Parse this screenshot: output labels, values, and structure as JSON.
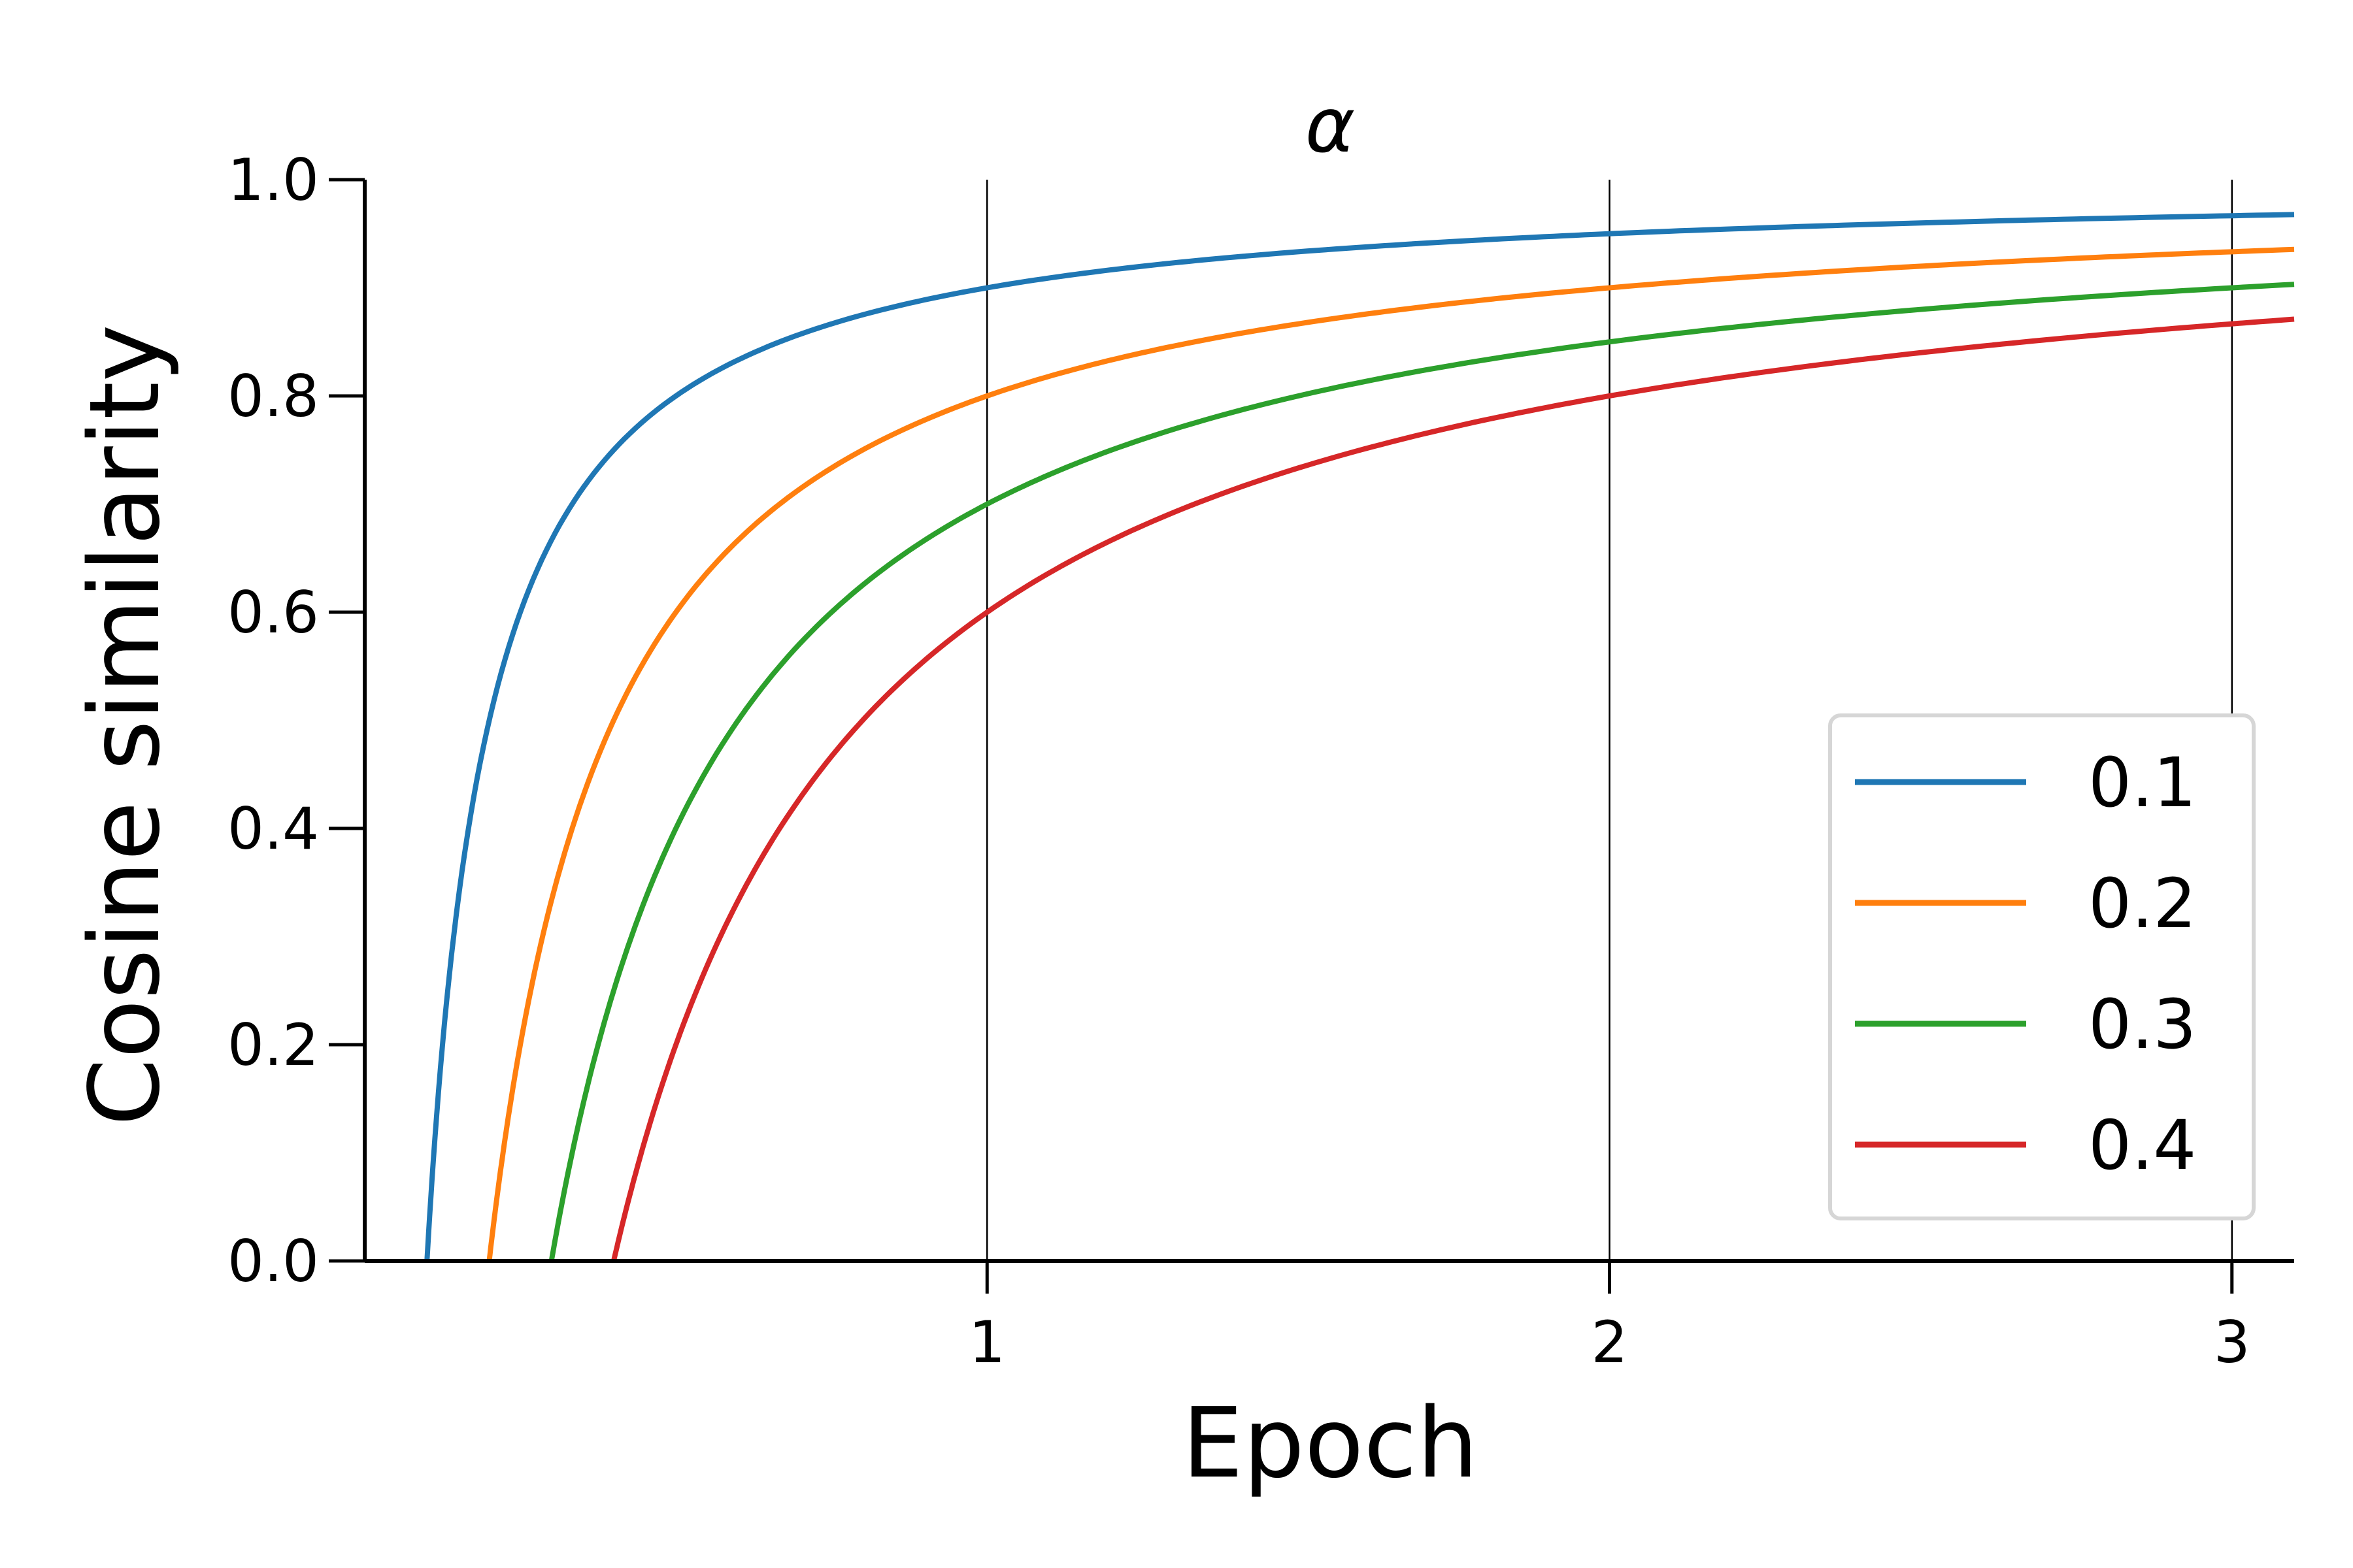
{
  "chart_data": {
    "type": "line",
    "title": "α",
    "xlabel": "Epoch",
    "ylabel": "Cosine similarity",
    "xlim": [
      0,
      3.1
    ],
    "ylim": [
      0,
      1.0
    ],
    "x_ticks": [
      "1",
      "2",
      "3"
    ],
    "y_ticks": [
      "0.0",
      "0.2",
      "0.4",
      "0.6",
      "0.8",
      "1.0"
    ],
    "grid": "vertical lines at x = 1, 2, 3",
    "legend_position": "lower-right",
    "series": [
      {
        "name": "0.1",
        "color": "#1f77b4",
        "x": [
          0.1,
          0.15,
          0.2,
          0.3,
          0.4,
          0.5,
          0.75,
          1.0,
          1.5,
          2.0,
          2.5,
          3.1
        ],
        "y": [
          0.0,
          0.333,
          0.5,
          0.667,
          0.75,
          0.8,
          0.867,
          0.9,
          0.933,
          0.95,
          0.96,
          0.968
        ]
      },
      {
        "name": "0.2",
        "color": "#ff7f0e",
        "x": [
          0.2,
          0.25,
          0.3,
          0.4,
          0.5,
          0.75,
          1.0,
          1.5,
          2.0,
          2.5,
          3.1
        ],
        "y": [
          0.0,
          0.2,
          0.333,
          0.5,
          0.6,
          0.733,
          0.8,
          0.867,
          0.9,
          0.92,
          0.935
        ]
      },
      {
        "name": "0.3",
        "color": "#2ca02c",
        "x": [
          0.3,
          0.35,
          0.4,
          0.5,
          0.6,
          0.75,
          1.0,
          1.5,
          2.0,
          2.5,
          3.1
        ],
        "y": [
          0.0,
          0.143,
          0.25,
          0.4,
          0.5,
          0.6,
          0.7,
          0.8,
          0.85,
          0.88,
          0.903
        ]
      },
      {
        "name": "0.4",
        "color": "#d62728",
        "x": [
          0.4,
          0.45,
          0.5,
          0.6,
          0.75,
          1.0,
          1.25,
          1.5,
          2.0,
          2.5,
          3.1
        ],
        "y": [
          0.0,
          0.111,
          0.2,
          0.333,
          0.467,
          0.6,
          0.68,
          0.733,
          0.8,
          0.84,
          0.871
        ]
      }
    ]
  }
}
